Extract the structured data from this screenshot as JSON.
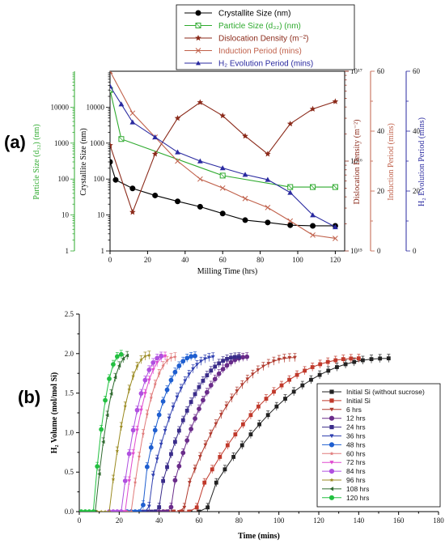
{
  "panels": {
    "a": "(a)",
    "b": "(b)"
  },
  "chart_data": [
    {
      "type": "line",
      "x_label": "Milling Time (hrs)",
      "x_ticks": [
        0,
        20,
        40,
        60,
        80,
        100,
        120
      ],
      "xlim": [
        0,
        125
      ],
      "axes": {
        "particle": {
          "label": "Particle Size (d₃₂) (nm)",
          "scale": "log",
          "lim": [
            1,
            100000
          ],
          "ticks": [
            "1",
            "10",
            "100",
            "1000",
            "10000"
          ],
          "color": "#2eaa2e"
        },
        "crystallite": {
          "label": "Crystallite Size (nm)",
          "scale": "log",
          "lim": [
            1,
            100000
          ],
          "ticks": [
            "1",
            "10",
            "100",
            "1000",
            "10000"
          ],
          "color": "#000000"
        },
        "dislocation": {
          "label": "Dislocation Density (m⁻²)",
          "scale": "log",
          "lim": [
            1000000000000000.0,
            1e+17
          ],
          "ticks": [
            "10¹⁵",
            "10¹⁶",
            "10¹⁷"
          ],
          "color": "#8b2a1a"
        },
        "induction": {
          "label": "Induction Period (mins)",
          "scale": "linear",
          "lim": [
            0,
            60
          ],
          "ticks": [
            "0",
            "20",
            "40",
            "60"
          ],
          "color": "#c0604a"
        },
        "evolution": {
          "label": "H₂ Evolution Period (mins)",
          "scale": "linear",
          "lim": [
            0,
            60
          ],
          "ticks": [
            "0",
            "20",
            "40",
            "60"
          ],
          "color": "#2a2aa0"
        }
      },
      "legend": [
        {
          "label": "Crystallite Size (nm)",
          "color": "#000000",
          "marker": "circle"
        },
        {
          "label": "Particle Size (d₃₂) (nm)",
          "color": "#2eaa2e",
          "marker": "square-open"
        },
        {
          "label": "Dislocation Density (m⁻²)",
          "color": "#8b2a1a",
          "marker": "star"
        },
        {
          "label": "Induction Period (mins)",
          "color": "#c0604a",
          "marker": "x"
        },
        {
          "label": "H₂ Evolution Period (mins)",
          "color": "#2a2aa0",
          "marker": "triangle"
        }
      ],
      "series": [
        {
          "name": "Crystallite Size (nm)",
          "axis": "crystallite",
          "x": [
            0,
            3,
            12,
            24,
            36,
            48,
            60,
            72,
            84,
            96,
            108,
            120
          ],
          "y": [
            300,
            95,
            55,
            35,
            24,
            17,
            11,
            7.2,
            6.2,
            5.2,
            5.0,
            5.0
          ]
        },
        {
          "name": "Particle Size (d32) (nm)",
          "axis": "particle",
          "x": [
            0,
            6,
            60,
            96,
            108,
            120
          ],
          "y": [
            30000,
            1300,
            125,
            60,
            60,
            60
          ]
        },
        {
          "name": "Dislocation Density (m-2)",
          "axis": "dislocation",
          "x": [
            0,
            12,
            24,
            36,
            48,
            60,
            72,
            84,
            96,
            108,
            120
          ],
          "y": [
            1.5e+16,
            2700000000000000.0,
            1.2e+16,
            3e+16,
            4.5e+16,
            3.2e+16,
            1.9e+16,
            1.2e+16,
            2.6e+16,
            3.8e+16,
            4.6e+16
          ]
        },
        {
          "name": "Induction Period (mins)",
          "axis": "induction",
          "x": [
            0,
            12,
            24,
            36,
            48,
            60,
            72,
            84,
            96,
            108,
            120
          ],
          "y": [
            60,
            46,
            38,
            30,
            24,
            21,
            17.5,
            14.5,
            10,
            5.3,
            4.2
          ]
        },
        {
          "name": "H2 Evolution Period (mins)",
          "axis": "evolution",
          "x": [
            0,
            6,
            12,
            24,
            36,
            48,
            60,
            72,
            84,
            96,
            108,
            120
          ],
          "y": [
            55,
            49,
            43,
            38,
            33,
            30,
            27.7,
            25.5,
            23.8,
            19.5,
            12,
            8
          ]
        }
      ]
    },
    {
      "type": "line",
      "x_label": "Time (mins)",
      "y_label": "H₂ Volume (mol/mol Si)",
      "xlim": [
        0,
        180
      ],
      "ylim": [
        0,
        2.5
      ],
      "x_ticks": [
        "0",
        "20",
        "40",
        "60",
        "80",
        "100",
        "120",
        "140",
        "160",
        "180"
      ],
      "y_ticks": [
        "0.0",
        "0.5",
        "1.0",
        "1.5",
        "2.0",
        "2.5"
      ],
      "legend": [
        {
          "label": "Initial Si (without sucrose)",
          "color": "#222222",
          "marker": "square"
        },
        {
          "label": "Initial Si",
          "color": "#c0392b",
          "marker": "square"
        },
        {
          "label": "6 hrs",
          "color": "#b03a2e",
          "marker": "triangle-down"
        },
        {
          "label": "12 hrs",
          "color": "#6a2c8a",
          "marker": "circle"
        },
        {
          "label": "24 hrs",
          "color": "#3a2c8a",
          "marker": "square"
        },
        {
          "label": "36 hrs",
          "color": "#3040b0",
          "marker": "triangle-down"
        },
        {
          "label": "48 hrs",
          "color": "#1f5fd0",
          "marker": "circle"
        },
        {
          "label": "60 hrs",
          "color": "#e07a7a",
          "marker": "star"
        },
        {
          "label": "72 hrs",
          "color": "#e04cd0",
          "marker": "triangle-down"
        },
        {
          "label": "84 hrs",
          "color": "#b050e0",
          "marker": "circle"
        },
        {
          "label": "96 hrs",
          "color": "#9a8a20",
          "marker": "star"
        },
        {
          "label": "108 hrs",
          "color": "#2f6b2f",
          "marker": "triangle-left"
        },
        {
          "label": "120 hrs",
          "color": "#22c040",
          "marker": "circle"
        }
      ],
      "series": [
        {
          "name": "Initial Si (without sucrose)",
          "t0": 60,
          "t1": 155,
          "end": 1.94
        },
        {
          "name": "Initial Si",
          "t0": 55,
          "t1": 140,
          "end": 1.94
        },
        {
          "name": "6 hrs",
          "t0": 50,
          "t1": 108,
          "end": 1.95
        },
        {
          "name": "12 hrs",
          "t0": 44,
          "t1": 85,
          "end": 1.96
        },
        {
          "name": "24 hrs",
          "t0": 38,
          "t1": 80,
          "end": 1.96
        },
        {
          "name": "36 hrs",
          "t0": 33,
          "t1": 68,
          "end": 1.96
        },
        {
          "name": "48 hrs",
          "t0": 30,
          "t1": 58,
          "end": 1.97
        },
        {
          "name": "60 hrs",
          "t0": 26,
          "t1": 48,
          "end": 1.96
        },
        {
          "name": "72 hrs",
          "t0": 23,
          "t1": 44,
          "end": 1.97
        },
        {
          "name": "84 hrs",
          "t0": 21,
          "t1": 42,
          "end": 1.97
        },
        {
          "name": "96 hrs",
          "t0": 15,
          "t1": 35,
          "end": 1.98
        },
        {
          "name": "108 hrs",
          "t0": 8,
          "t1": 25,
          "end": 1.98
        },
        {
          "name": "120 hrs",
          "t0": 7,
          "t1": 21,
          "end": 1.99
        }
      ]
    }
  ]
}
